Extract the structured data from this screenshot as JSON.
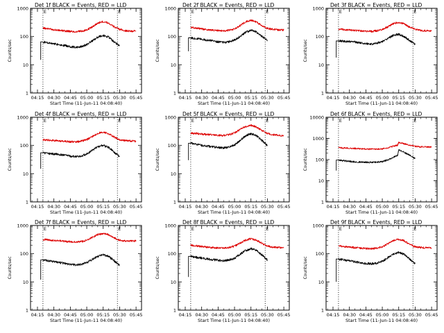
{
  "figure": {
    "panel_titles": [
      "Det 1f BLACK = Events, RED = LLD",
      "Det 2f BLACK = Events, RED = LLD",
      "Det 3f BLACK = Events, RED = LLD",
      "Det 4f BLACK = Events, RED = LLD",
      "Det 5f BLACK = Events, RED = LLD",
      "Det 6f BLACK = Events, RED = LLD",
      "Det 7f BLACK = Events, RED = LLD",
      "Det 8f BLACK = Events, RED = LLD",
      "Det 9f BLACK = Events, RED = LLD"
    ],
    "xlabel": "Start Time (11-Jun-11 04:08:40)",
    "ylabel": "Counts/sec",
    "x_tick_labels": [
      "04:15",
      "04:30",
      "04:45",
      "05:00",
      "05:15",
      "05:30",
      "05:45"
    ],
    "y_tick_labels_default": [
      "1",
      "10",
      "100",
      "1000"
    ],
    "y_tick_labels_det6": [
      "1",
      "10",
      "100",
      "1000",
      "10000"
    ],
    "marker_labels": [
      "E",
      "E"
    ],
    "colors": {
      "events": "#000000",
      "lld": "#dd0000",
      "axes": "#000000",
      "background": "#ffffff"
    }
  },
  "chart_data": [
    {
      "type": "line",
      "panel": "Det 1f",
      "x_unit": "UT",
      "xlim": [
        "04:08:40",
        "05:50"
      ],
      "y_scale": "log",
      "ylim": [
        1,
        1000
      ],
      "marker_times": [
        "04:20",
        "05:28"
      ],
      "x": [
        "04:18",
        "04:20",
        "04:25",
        "04:30",
        "04:35",
        "04:40",
        "04:45",
        "04:50",
        "04:55",
        "05:00",
        "05:05",
        "05:10",
        "05:15",
        "05:20",
        "05:25",
        "05:30",
        "05:35",
        "05:40",
        "05:45"
      ],
      "series": [
        {
          "name": "BLACK = Events",
          "color": "#000000",
          "values": [
            null,
            65,
            58,
            56,
            52,
            48,
            44,
            42,
            44,
            52,
            70,
            95,
            110,
            95,
            65,
            48,
            null,
            null,
            null
          ],
          "start_spike": {
            "x": "04:18",
            "y": 15
          }
        },
        {
          "name": "RED = LLD",
          "color": "#dd0000",
          "values": [
            null,
            200,
            190,
            175,
            165,
            158,
            152,
            148,
            155,
            170,
            220,
            300,
            340,
            300,
            220,
            180,
            160,
            155,
            158
          ]
        }
      ]
    },
    {
      "type": "line",
      "panel": "Det 2f",
      "x_unit": "UT",
      "xlim": [
        "04:08:40",
        "05:50"
      ],
      "y_scale": "log",
      "ylim": [
        1,
        1000
      ],
      "marker_times": [
        "04:20",
        "05:28"
      ],
      "x": [
        "04:18",
        "04:20",
        "04:25",
        "04:30",
        "04:35",
        "04:40",
        "04:45",
        "04:50",
        "04:55",
        "05:00",
        "05:05",
        "05:10",
        "05:15",
        "05:20",
        "05:25",
        "05:30",
        "05:35",
        "05:40",
        "05:45"
      ],
      "series": [
        {
          "name": "BLACK = Events",
          "color": "#000000",
          "values": [
            null,
            90,
            85,
            80,
            75,
            70,
            65,
            62,
            65,
            75,
            100,
            140,
            165,
            145,
            100,
            75,
            null,
            null,
            null
          ],
          "start_spike": {
            "x": "04:18",
            "y": 30
          }
        },
        {
          "name": "RED = LLD",
          "color": "#dd0000",
          "values": [
            null,
            210,
            200,
            185,
            175,
            168,
            162,
            160,
            168,
            185,
            240,
            330,
            380,
            330,
            240,
            195,
            180,
            172,
            170
          ]
        }
      ]
    },
    {
      "type": "line",
      "panel": "Det 3f",
      "x_unit": "UT",
      "xlim": [
        "04:08:40",
        "05:50"
      ],
      "y_scale": "log",
      "ylim": [
        1,
        1000
      ],
      "marker_times": [
        "04:20",
        "05:28"
      ],
      "x": [
        "04:18",
        "04:20",
        "04:25",
        "04:30",
        "04:35",
        "04:40",
        "04:45",
        "04:50",
        "04:55",
        "05:00",
        "05:05",
        "05:10",
        "05:15",
        "05:20",
        "05:25",
        "05:30",
        "05:35",
        "05:40",
        "05:45"
      ],
      "series": [
        {
          "name": "BLACK = Events",
          "color": "#000000",
          "values": [
            null,
            70,
            68,
            66,
            64,
            60,
            56,
            54,
            58,
            66,
            85,
            110,
            120,
            100,
            72,
            52,
            null,
            null,
            null
          ],
          "start_spike": {
            "x": "04:18",
            "y": 18
          }
        },
        {
          "name": "RED = LLD",
          "color": "#dd0000",
          "values": [
            null,
            180,
            175,
            170,
            165,
            160,
            156,
            152,
            160,
            178,
            220,
            285,
            320,
            280,
            215,
            180,
            165,
            160,
            162
          ]
        }
      ]
    },
    {
      "type": "line",
      "panel": "Det 4f",
      "x_unit": "UT",
      "xlim": [
        "04:08:40",
        "05:50"
      ],
      "y_scale": "log",
      "ylim": [
        1,
        1000
      ],
      "marker_times": [
        "04:20",
        "05:28"
      ],
      "x": [
        "04:18",
        "04:20",
        "04:25",
        "04:30",
        "04:35",
        "04:40",
        "04:45",
        "04:50",
        "04:55",
        "05:00",
        "05:05",
        "05:10",
        "05:15",
        "05:20",
        "05:25",
        "05:30",
        "05:35",
        "05:40",
        "05:45"
      ],
      "series": [
        {
          "name": "BLACK = Events",
          "color": "#000000",
          "values": [
            null,
            55,
            52,
            50,
            48,
            45,
            42,
            40,
            42,
            50,
            68,
            90,
            100,
            85,
            58,
            40,
            null,
            null,
            null
          ],
          "start_spike": {
            "x": "04:18",
            "y": 15
          }
        },
        {
          "name": "RED = LLD",
          "color": "#dd0000",
          "values": [
            null,
            160,
            155,
            150,
            145,
            140,
            136,
            134,
            142,
            160,
            205,
            270,
            300,
            265,
            200,
            160,
            148,
            145,
            142
          ]
        }
      ]
    },
    {
      "type": "line",
      "panel": "Det 5f",
      "x_unit": "UT",
      "xlim": [
        "04:08:40",
        "05:50"
      ],
      "y_scale": "log",
      "ylim": [
        1,
        1000
      ],
      "marker_times": [
        "04:20",
        "05:28"
      ],
      "x": [
        "04:18",
        "04:20",
        "04:25",
        "04:30",
        "04:35",
        "04:40",
        "04:45",
        "04:50",
        "04:55",
        "05:00",
        "05:05",
        "05:10",
        "05:15",
        "05:20",
        "05:25",
        "05:30",
        "05:35",
        "05:40",
        "05:45"
      ],
      "series": [
        {
          "name": "BLACK = Events",
          "color": "#000000",
          "values": [
            null,
            120,
            110,
            100,
            95,
            90,
            85,
            82,
            88,
            105,
            150,
            220,
            260,
            220,
            150,
            100,
            null,
            null,
            null
          ],
          "start_spike": {
            "x": "04:18",
            "y": 30
          }
        },
        {
          "name": "RED = LLD",
          "color": "#dd0000",
          "values": [
            null,
            270,
            265,
            255,
            245,
            235,
            228,
            225,
            240,
            280,
            370,
            470,
            520,
            450,
            340,
            270,
            240,
            230,
            225
          ]
        }
      ]
    },
    {
      "type": "line",
      "panel": "Det 6f",
      "x_unit": "UT",
      "xlim": [
        "04:08:40",
        "05:50"
      ],
      "y_scale": "log",
      "ylim": [
        1,
        10000
      ],
      "marker_times": [
        "04:20",
        "05:28"
      ],
      "x": [
        "04:18",
        "04:20",
        "04:25",
        "04:30",
        "04:35",
        "04:40",
        "04:45",
        "04:50",
        "04:55",
        "05:00",
        "05:05",
        "05:10",
        "05:14",
        "05:15",
        "05:20",
        "05:25",
        "05:30",
        "05:35",
        "05:40",
        "05:45"
      ],
      "series": [
        {
          "name": "BLACK = Events",
          "color": "#000000",
          "values": [
            null,
            95,
            88,
            82,
            78,
            76,
            75,
            74,
            76,
            80,
            95,
            130,
            160,
            290,
            220,
            160,
            110,
            null,
            null,
            null
          ],
          "start_spike": {
            "x": "04:18",
            "y": 30
          }
        },
        {
          "name": "RED = LLD",
          "color": "#dd0000",
          "values": [
            null,
            360,
            355,
            345,
            335,
            325,
            318,
            312,
            315,
            325,
            360,
            430,
            480,
            650,
            560,
            480,
            420,
            400,
            395,
            395
          ]
        }
      ]
    },
    {
      "type": "line",
      "panel": "Det 7f",
      "x_unit": "UT",
      "xlim": [
        "04:08:40",
        "05:50"
      ],
      "y_scale": "log",
      "ylim": [
        1,
        1000
      ],
      "marker_times": [
        "04:20",
        "05:28"
      ],
      "x": [
        "04:18",
        "04:20",
        "04:25",
        "04:30",
        "04:35",
        "04:40",
        "04:45",
        "04:50",
        "04:55",
        "05:00",
        "05:05",
        "05:10",
        "05:15",
        "05:20",
        "05:25",
        "05:30",
        "05:35",
        "05:40",
        "05:45"
      ],
      "series": [
        {
          "name": "BLACK = Events",
          "color": "#000000",
          "values": [
            null,
            60,
            56,
            52,
            48,
            45,
            42,
            40,
            42,
            48,
            62,
            80,
            92,
            80,
            56,
            38,
            null,
            null,
            null
          ],
          "start_spike": {
            "x": "04:18",
            "y": 12
          }
        },
        {
          "name": "RED = LLD",
          "color": "#dd0000",
          "values": [
            null,
            320,
            310,
            295,
            285,
            275,
            265,
            260,
            270,
            300,
            380,
            480,
            520,
            470,
            360,
            300,
            285,
            280,
            280
          ]
        }
      ]
    },
    {
      "type": "line",
      "panel": "Det 8f",
      "x_unit": "UT",
      "xlim": [
        "04:08:40",
        "05:50"
      ],
      "y_scale": "log",
      "ylim": [
        1,
        1000
      ],
      "marker_times": [
        "04:20",
        "05:28"
      ],
      "x": [
        "04:18",
        "04:20",
        "04:25",
        "04:30",
        "04:35",
        "04:40",
        "04:45",
        "04:50",
        "04:55",
        "05:00",
        "05:05",
        "05:10",
        "05:15",
        "05:20",
        "05:25",
        "05:30",
        "05:35",
        "05:40",
        "05:45"
      ],
      "series": [
        {
          "name": "BLACK = Events",
          "color": "#000000",
          "values": [
            null,
            80,
            75,
            70,
            65,
            62,
            58,
            56,
            60,
            68,
            95,
            130,
            150,
            130,
            90,
            60,
            null,
            null,
            null
          ],
          "start_spike": {
            "x": "04:18",
            "y": 15
          }
        },
        {
          "name": "RED = LLD",
          "color": "#dd0000",
          "values": [
            null,
            200,
            190,
            180,
            172,
            165,
            160,
            158,
            165,
            185,
            235,
            300,
            340,
            300,
            230,
            185,
            170,
            165,
            165
          ]
        }
      ]
    },
    {
      "type": "line",
      "panel": "Det 9f",
      "x_unit": "UT",
      "xlim": [
        "04:08:40",
        "05:50"
      ],
      "y_scale": "log",
      "ylim": [
        1,
        1000
      ],
      "marker_times": [
        "04:20",
        "05:28"
      ],
      "x": [
        "04:18",
        "04:20",
        "04:25",
        "04:30",
        "04:35",
        "04:40",
        "04:45",
        "04:50",
        "04:55",
        "05:00",
        "05:05",
        "05:10",
        "05:15",
        "05:20",
        "05:25",
        "05:30",
        "05:35",
        "05:40",
        "05:45"
      ],
      "series": [
        {
          "name": "BLACK = Events",
          "color": "#000000",
          "values": [
            null,
            65,
            60,
            56,
            52,
            48,
            45,
            44,
            46,
            54,
            72,
            95,
            110,
            95,
            65,
            45,
            null,
            null,
            null
          ],
          "start_spike": {
            "x": "04:18",
            "y": 10
          }
        },
        {
          "name": "RED = LLD",
          "color": "#dd0000",
          "values": [
            null,
            190,
            180,
            172,
            165,
            158,
            152,
            150,
            158,
            175,
            225,
            290,
            320,
            285,
            215,
            175,
            165,
            162,
            160
          ]
        }
      ]
    }
  ]
}
